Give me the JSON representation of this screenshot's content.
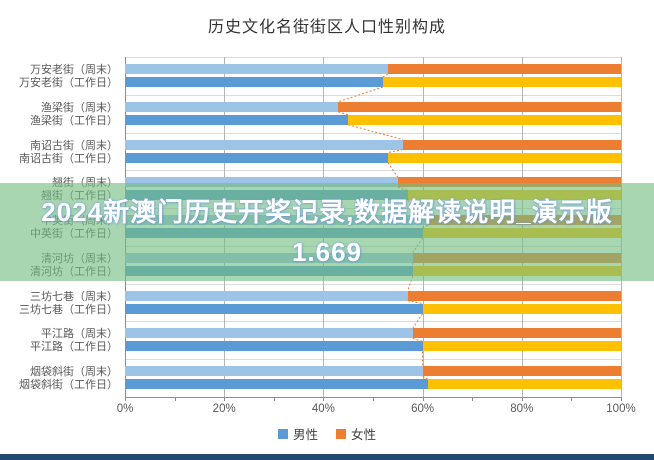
{
  "title": "历史文化名街街区人口性别构成",
  "watermark": {
    "line1": "2024新澳门历史开奖记录,数据解读说明_演示版",
    "line2": "1.669"
  },
  "legend": [
    {
      "label": "男性",
      "color": "#5B9BD5"
    },
    {
      "label": "女性",
      "color": "#ED7D31"
    }
  ],
  "colors": {
    "male_weekend": "#9DC3E6",
    "male_weekday": "#5B9BD5",
    "female_weekend": "#ED7D31",
    "female_weekday": "#FFC000",
    "grid_vertical": "#b5b5b5",
    "grid_horizontal": "#dcdcdc",
    "axis": "#8c8c8c",
    "connector": "#ED7D31",
    "overlay_band": "rgba(114,189,129,0.62)",
    "footer_strip": "#234870"
  },
  "chart_data": {
    "type": "bar",
    "orientation": "horizontal",
    "stacked": true,
    "unit": "%",
    "title": "历史文化名街街区人口性别构成",
    "xlim": [
      0,
      100
    ],
    "x_ticks": [
      "0%",
      "20%",
      "40%",
      "60%",
      "80%",
      "100%"
    ],
    "grid": true,
    "legend_position": "bottom",
    "categories": [
      "万安老街（周末）",
      "万安老街（工作日）",
      "渔梁街（周末）",
      "渔梁街（工作日）",
      "南诏古街（周末）",
      "南诏古街（工作日）",
      "翘街（周末）",
      "翘街（工作日）",
      "中英街（周末）",
      "中英街（工作日）",
      "清河坊（周末）",
      "清河坊（工作日）",
      "三坊七巷（周末）",
      "三坊七巷（工作日）",
      "平江路（周末）",
      "平江路（工作日）",
      "烟袋斜街（周末）",
      "烟袋斜街（工作日）"
    ],
    "series": [
      {
        "name": "男性",
        "values": [
          53,
          52,
          43,
          45,
          56,
          53,
          55,
          57,
          61,
          60,
          58,
          58,
          57,
          60,
          58,
          60,
          60,
          61
        ]
      },
      {
        "name": "女性",
        "values": [
          47,
          48,
          57,
          55,
          44,
          47,
          45,
          43,
          39,
          40,
          42,
          42,
          43,
          40,
          42,
          40,
          40,
          39
        ]
      }
    ]
  }
}
